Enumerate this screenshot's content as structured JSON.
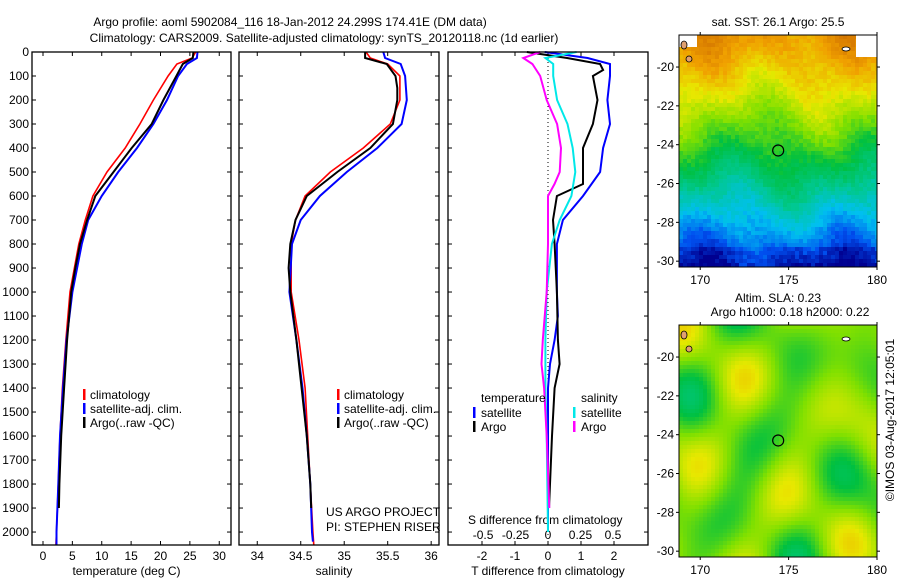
{
  "chart_data": {
    "type": "line",
    "title": [
      "Argo profile: aoml 5902084_116 18-Jan-2012 24.299S 174.41E (DM data)",
      "Climatology: CARS2009. Satellite-adjusted climatology: synTS_20120118.nc (1d earlier)"
    ],
    "depth_axis": {
      "range": [
        0,
        2054
      ],
      "ticks": [
        0,
        100,
        200,
        300,
        400,
        500,
        600,
        700,
        800,
        900,
        1000,
        1100,
        1200,
        1300,
        1400,
        1500,
        1600,
        1700,
        1800,
        1900,
        2000
      ]
    },
    "panels": [
      {
        "id": "temperature",
        "xlabel": "temperature (deg C)",
        "xlim": [
          -1.87,
          32.0
        ],
        "xticks": [
          0,
          5,
          10,
          15,
          20,
          25,
          30
        ],
        "series": [
          {
            "name": "climatology",
            "color": "#ff0000",
            "depth": [
              0,
              25,
              50,
              100,
              200,
              300,
              400,
              500,
              600,
              700,
              800,
              1000,
              1200,
              1400,
              1600,
              1800,
              2000,
              2054
            ],
            "values": [
              26.0,
              25.4,
              22.8,
              21.3,
              18.8,
              16.5,
              14.0,
              10.9,
              8.5,
              7.2,
              6.1,
              4.6,
              3.9,
              3.3,
              2.9,
              2.6,
              2.3,
              2.2
            ]
          },
          {
            "name": "satellite-adj. clim.",
            "color": "#0000ff",
            "depth": [
              0,
              25,
              50,
              100,
              200,
              300,
              400,
              500,
              600,
              700,
              800,
              1000,
              1200,
              1400,
              1600,
              1800,
              2000,
              2054
            ],
            "values": [
              26.3,
              26.2,
              24.5,
              23.0,
              21.1,
              18.8,
              16.0,
              12.8,
              10.0,
              7.7,
              6.6,
              5.0,
              4.0,
              3.4,
              2.9,
              2.6,
              2.3,
              2.3
            ]
          },
          {
            "name": "Argo(..raw -QC)",
            "color": "#000000",
            "depth": [
              0,
              25,
              50,
              100,
              200,
              300,
              400,
              500,
              600,
              700,
              800,
              900,
              1000,
              1200,
              1400,
              1600,
              1800,
              1900
            ],
            "values": [
              25.6,
              25.5,
              23.8,
              22.7,
              20.5,
              18.5,
              15.1,
              12.0,
              8.9,
              7.5,
              6.3,
              5.5,
              4.8,
              4.1,
              3.6,
              3.1,
              2.8,
              2.7
            ]
          }
        ]
      },
      {
        "id": "salinity",
        "xlabel": "salinity",
        "xlim": [
          33.79,
          36.09
        ],
        "xticks": [
          34,
          34.5,
          35,
          35.5,
          36
        ],
        "credit": [
          "US ARGO PROJECT",
          "PI: STEPHEN RISER"
        ],
        "series": [
          {
            "name": "climatology",
            "color": "#ff0000",
            "depth": [
              0,
              25,
              50,
              100,
              200,
              300,
              400,
              500,
              600,
              700,
              800,
              1000,
              1200,
              1400,
              1600,
              1800,
              2000,
              2054
            ],
            "values": [
              35.25,
              35.3,
              35.5,
              35.64,
              35.64,
              35.53,
              35.22,
              34.84,
              34.55,
              34.44,
              34.39,
              34.39,
              34.48,
              34.55,
              34.58,
              34.61,
              34.64,
              34.65
            ]
          },
          {
            "name": "satellite-adj. clim.",
            "color": "#0000ff",
            "depth": [
              0,
              25,
              50,
              100,
              200,
              300,
              400,
              500,
              600,
              700,
              800,
              1000,
              1200,
              1400,
              1600,
              1800,
              2000,
              2040
            ],
            "values": [
              35.45,
              35.47,
              35.65,
              35.7,
              35.72,
              35.66,
              35.38,
              35.03,
              34.72,
              34.5,
              34.4,
              34.37,
              34.45,
              34.52,
              34.57,
              34.61,
              34.63,
              34.64
            ]
          },
          {
            "name": "Argo(..raw -QC)",
            "color": "#000000",
            "depth": [
              0,
              25,
              50,
              100,
              150,
              200,
              300,
              400,
              500,
              600,
              700,
              800,
              900,
              1000,
              1200,
              1400,
              1600,
              1800,
              1900
            ],
            "values": [
              35.24,
              35.24,
              35.49,
              35.59,
              35.61,
              35.61,
              35.56,
              35.3,
              34.92,
              34.57,
              34.44,
              34.38,
              34.36,
              34.38,
              34.45,
              34.51,
              34.57,
              34.61,
              34.62
            ]
          }
        ]
      },
      {
        "id": "difference",
        "xlabel": "T difference from climatology",
        "xlim": [
          -3.03,
          3.03
        ],
        "xticks": [
          -2,
          -1,
          0,
          1,
          2
        ],
        "s_label": "S difference from climatology",
        "s_lim": [
          -0.77,
          0.77
        ],
        "s_ticks": [
          "-0.5",
          "-0.25",
          "0",
          "0.25",
          "0.5"
        ],
        "legend_headers": [
          "temperature",
          "salinity"
        ],
        "series": [
          {
            "name": "satellite",
            "group": "temperature",
            "axis": "T",
            "color": "#0000ff",
            "depth": [
              0,
              25,
              50,
              100,
              200,
              300,
              400,
              500,
              600,
              700,
              800,
              1000,
              1100,
              1200,
              1300,
              1400,
              1600,
              2000
            ],
            "values": [
              -0.1,
              1.2,
              1.88,
              1.88,
              1.8,
              1.88,
              1.67,
              1.58,
              1.06,
              0.45,
              0.27,
              0.27,
              0.3,
              0.2,
              0.06,
              0.0,
              0.0,
              0.0
            ]
          },
          {
            "name": "Argo",
            "group": "temperature",
            "axis": "T",
            "color": "#000000",
            "depth": [
              0,
              25,
              50,
              75,
              100,
              200,
              300,
              400,
              550,
              600,
              700,
              800,
              1000,
              1200,
              1300,
              1400,
              1600,
              1800,
              1900
            ],
            "values": [
              -0.64,
              0.58,
              1.58,
              1.67,
              1.36,
              1.5,
              1.36,
              1.06,
              1.06,
              0.27,
              0.15,
              0.2,
              0.27,
              0.3,
              0.35,
              0.2,
              0.12,
              0.06,
              0.03
            ]
          },
          {
            "name": "satellite",
            "group": "salinity",
            "axis": "S",
            "color": "#00e8e8",
            "depth": [
              0,
              25,
              50,
              100,
              200,
              300,
              400,
              500,
              600,
              700,
              800,
              1000,
              1200,
              1400,
              1600,
              2000
            ],
            "values": [
              0.22,
              -0.02,
              0.04,
              0.04,
              0.07,
              0.15,
              0.19,
              0.21,
              0.18,
              0.09,
              0.03,
              -0.01,
              -0.02,
              -0.02,
              -0.01,
              0.0
            ]
          },
          {
            "name": "Argo",
            "group": "salinity",
            "axis": "S",
            "color": "#ff00ff",
            "depth": [
              0,
              25,
              50,
              100,
              200,
              300,
              400,
              500,
              550,
              600,
              800,
              1000,
              1200,
              1300,
              1400,
              1600,
              1900
            ],
            "values": [
              -0.06,
              -0.19,
              -0.12,
              -0.06,
              -0.01,
              0.07,
              0.1,
              0.09,
              0.05,
              0.0,
              0.0,
              -0.01,
              -0.04,
              -0.05,
              -0.03,
              -0.01,
              0.01
            ]
          }
        ]
      }
    ],
    "maps": [
      {
        "id": "sst",
        "title": [
          "sat. SST: 26.1  Argo: 25.5"
        ],
        "field": "sst",
        "lon_range": [
          168.8,
          180.0
        ],
        "lat_range": [
          -30.3,
          -18.35
        ],
        "lon_ticks": [
          170,
          175,
          180
        ],
        "lat_ticks": [
          -20,
          -22,
          -24,
          -26,
          -28,
          -30
        ]
      },
      {
        "id": "sla",
        "title": [
          "Altim. SLA: 0.23",
          "Argo h1000: 0.18 h2000: 0.22"
        ],
        "field": "sla",
        "lon_range": [
          168.8,
          180.0
        ],
        "lat_range": [
          -30.3,
          -18.35
        ],
        "lon_ticks": [
          170,
          175,
          180
        ],
        "lat_ticks": [
          -20,
          -22,
          -24,
          -26,
          -28,
          -30
        ]
      }
    ],
    "argo_position": {
      "lon": 174.41,
      "lat": -24.299
    },
    "colormap": [
      "#000090",
      "#0050f0",
      "#00c0f0",
      "#00c890",
      "#00c040",
      "#80e000",
      "#e8e800",
      "#f0a000",
      "#d07000"
    ],
    "credit_vertical": "©IMOS 03-Aug-2017 12:05:01"
  }
}
